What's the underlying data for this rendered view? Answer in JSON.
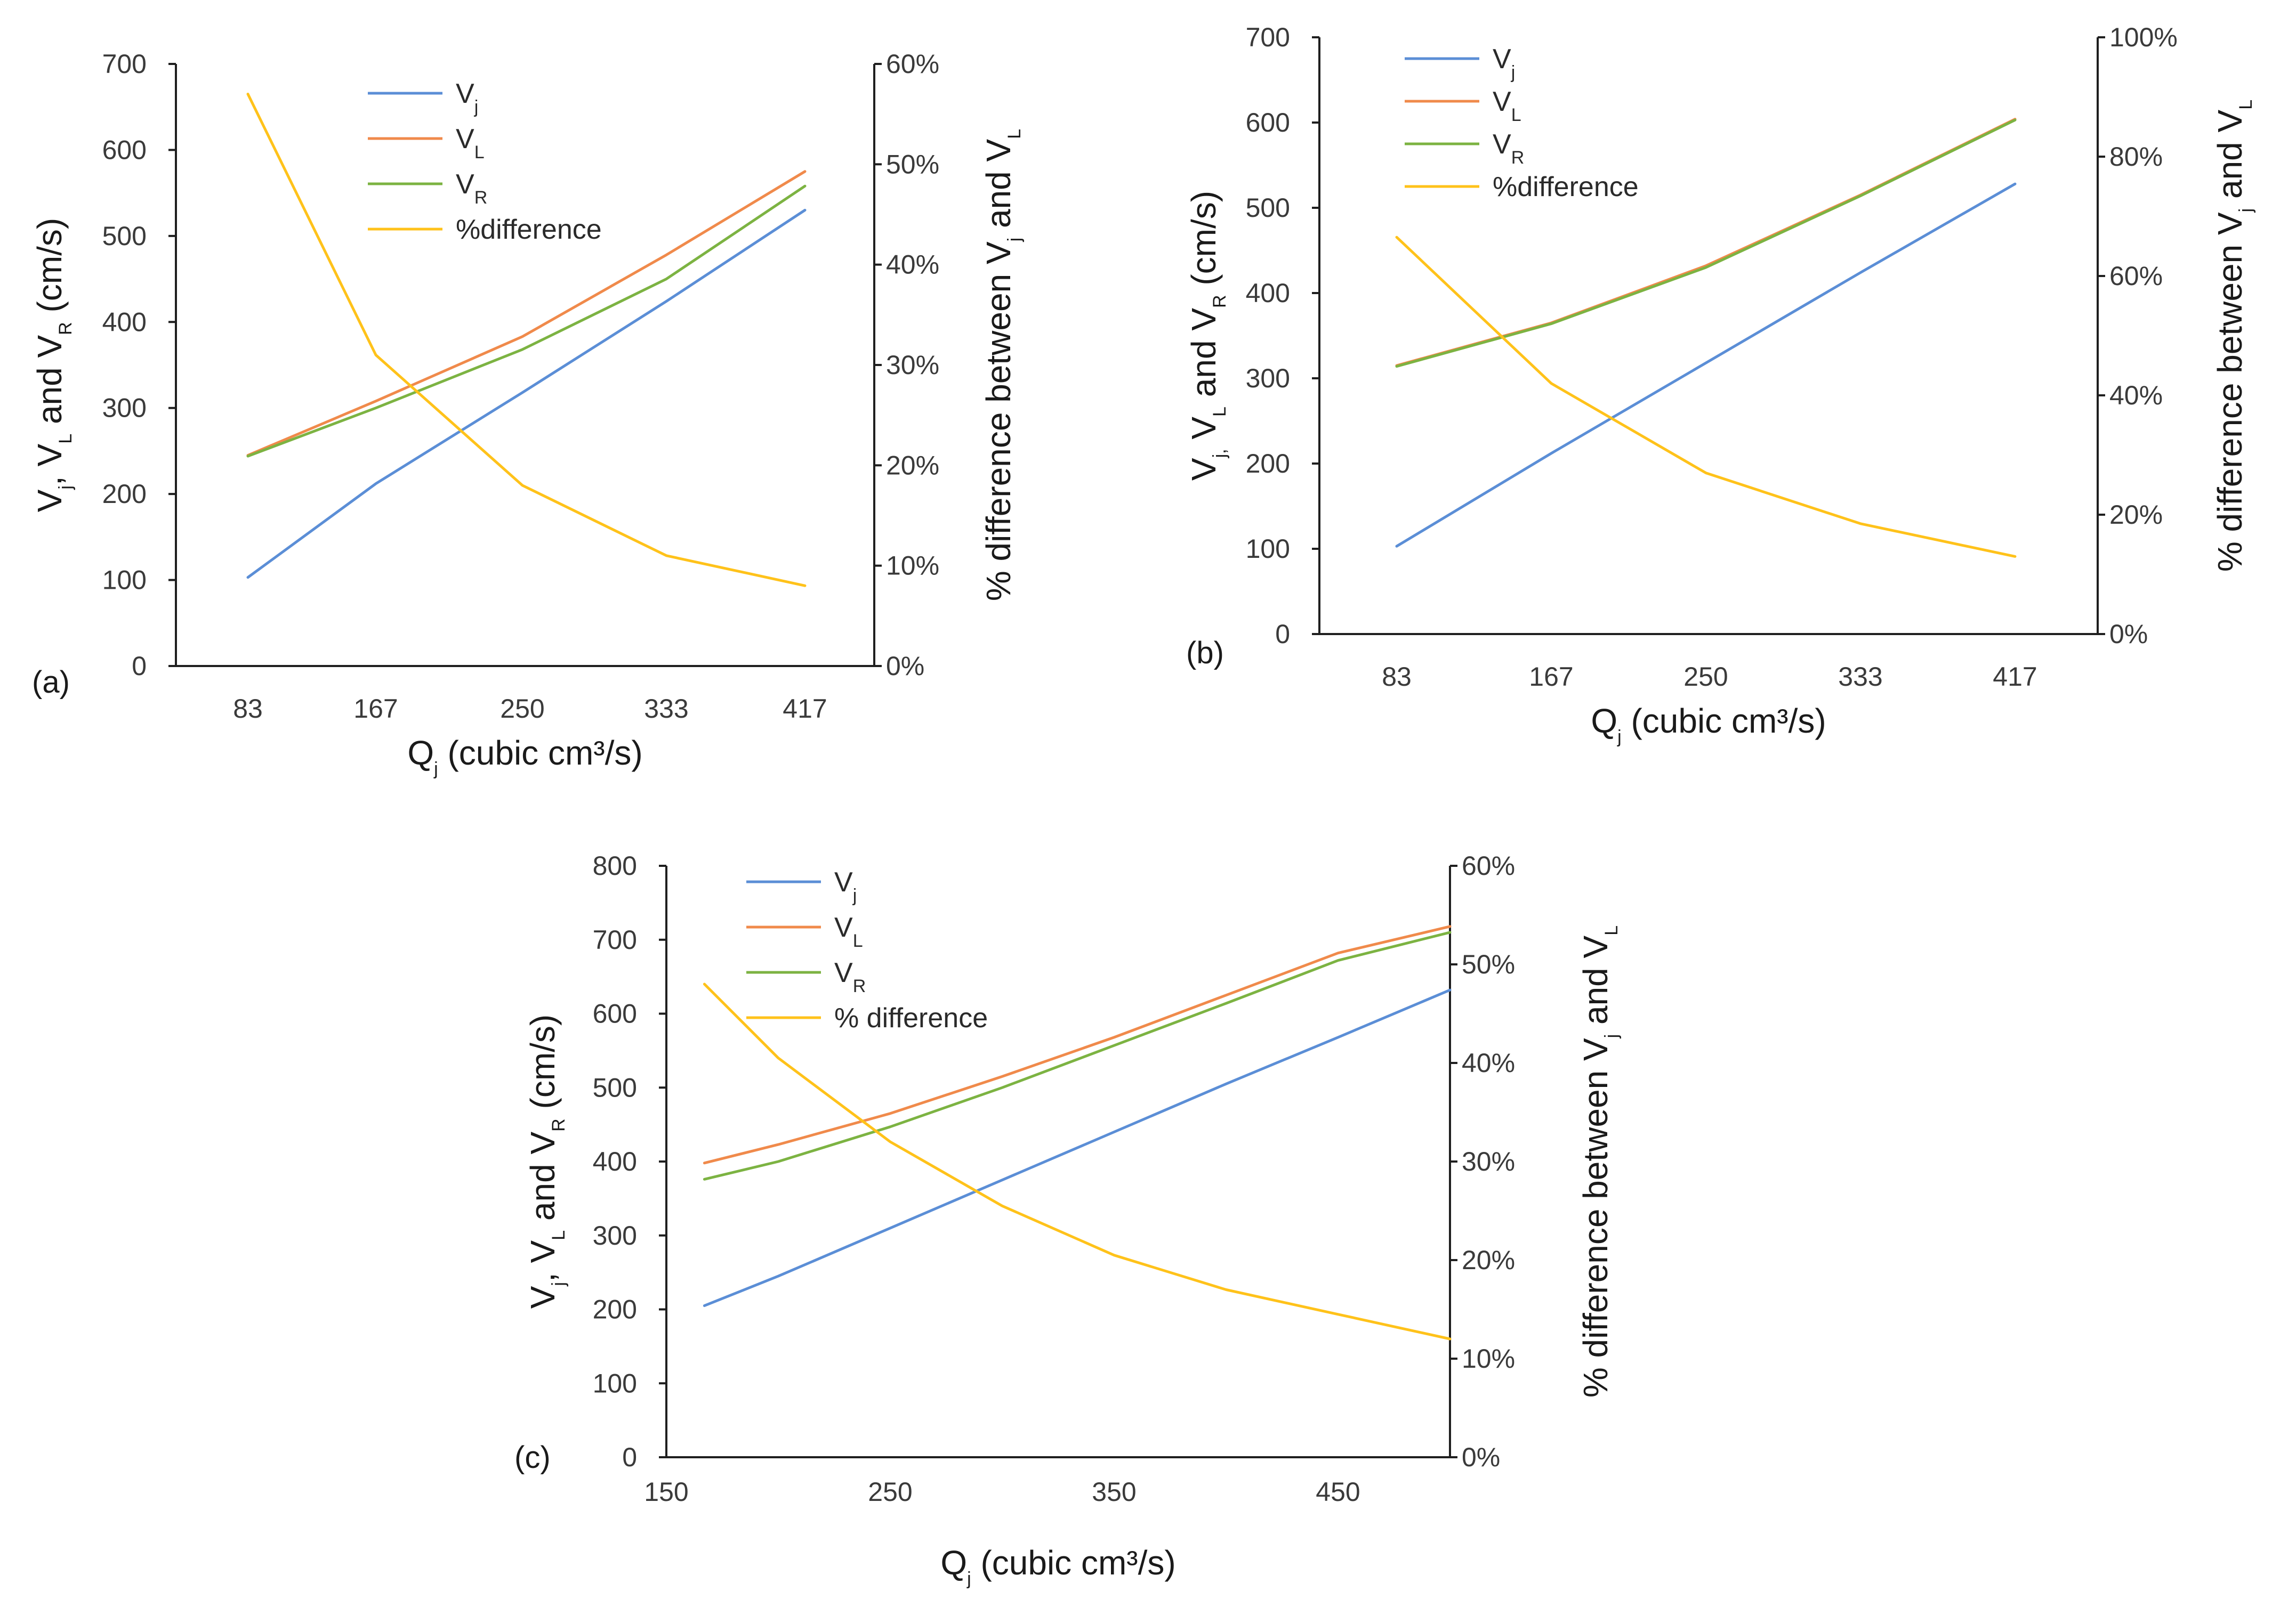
{
  "colors": {
    "vj": "#5B8ED6",
    "vl": "#F08A4B",
    "vr": "#7CB342",
    "diff": "#FFC21A",
    "axis": "#1f1f1f"
  },
  "chart_data": [
    {
      "type": "line",
      "panel_label": "(a)",
      "x": [
        83,
        167,
        250,
        333,
        417
      ],
      "x_tick_labels": [
        "83",
        "167",
        "250",
        "333",
        "417"
      ],
      "x_axis": {
        "base": "Q",
        "sub": "j",
        "rest": " (cubic cm³/s)"
      },
      "y_left": {
        "ticks": [
          0,
          100,
          200,
          300,
          400,
          500,
          600,
          700
        ],
        "tick_labels": [
          "0",
          "100",
          "200",
          "300",
          "400",
          "500",
          "600",
          "700"
        ],
        "ylim": [
          0,
          700
        ],
        "label_parts": [
          {
            "t": "V"
          },
          {
            "t": "j",
            "sub": true
          },
          {
            "t": ", V"
          },
          {
            "t": "L",
            "sub": true
          },
          {
            "t": " and V"
          },
          {
            "t": "R",
            "sub": true
          },
          {
            "t": " (cm/s)"
          }
        ]
      },
      "y_right": {
        "ticks": [
          0,
          0.1,
          0.2,
          0.3,
          0.4,
          0.5,
          0.6
        ],
        "tick_labels": [
          "0%",
          "10%",
          "20%",
          "30%",
          "40%",
          "50%",
          "60%"
        ],
        "ylim": [
          0,
          0.6
        ],
        "label_parts": [
          {
            "t": "% difference between V"
          },
          {
            "t": "j",
            "sub": true
          },
          {
            "t": " and V"
          },
          {
            "t": "L",
            "sub": true
          }
        ]
      },
      "series": [
        {
          "key": "vj",
          "name": "V",
          "sub": "j",
          "axis": "left",
          "values": [
            103,
            212,
            318,
            424,
            530
          ]
        },
        {
          "key": "vl",
          "name": "V",
          "sub": "L",
          "axis": "left",
          "values": [
            245,
            308,
            383,
            478,
            575
          ]
        },
        {
          "key": "vr",
          "name": "V",
          "sub": "R",
          "axis": "left",
          "values": [
            244,
            300,
            368,
            450,
            558
          ]
        },
        {
          "key": "diff",
          "name": "%difference",
          "sub": "",
          "axis": "right",
          "values": [
            0.57,
            0.31,
            0.18,
            0.11,
            0.08
          ]
        }
      ],
      "legend": "top-center"
    },
    {
      "type": "line",
      "panel_label": "(b)",
      "x": [
        83,
        167,
        250,
        333,
        417
      ],
      "x_tick_labels": [
        "83",
        "167",
        "250",
        "333",
        "417"
      ],
      "x_axis": {
        "base": "Q",
        "sub": "j",
        "rest": " (cubic cm³/s)"
      },
      "y_left": {
        "ticks": [
          0,
          100,
          200,
          300,
          400,
          500,
          600,
          700
        ],
        "tick_labels": [
          "0",
          "100",
          "200",
          "300",
          "400",
          "500",
          "600",
          "700"
        ],
        "ylim": [
          0,
          700
        ],
        "label_parts": [
          {
            "t": "V"
          },
          {
            "t": "j,",
            "sub": true
          },
          {
            "t": " V"
          },
          {
            "t": "L",
            "sub": true
          },
          {
            "t": " and V"
          },
          {
            "t": "R",
            "sub": true
          },
          {
            "t": " (cm/s)"
          }
        ]
      },
      "y_right": {
        "ticks": [
          0,
          0.2,
          0.4,
          0.6,
          0.8,
          1.0
        ],
        "tick_labels": [
          "0%",
          "20%",
          "40%",
          "60%",
          "80%",
          "100%"
        ],
        "ylim": [
          0,
          1.0
        ],
        "label_parts": [
          {
            "t": "% difference between V"
          },
          {
            "t": "j",
            "sub": true
          },
          {
            "t": " and V"
          },
          {
            "t": "L",
            "sub": true
          }
        ]
      },
      "series": [
        {
          "key": "vj",
          "name": "V",
          "sub": "j",
          "axis": "left",
          "values": [
            103,
            212,
            318,
            424,
            528
          ]
        },
        {
          "key": "vl",
          "name": "V",
          "sub": "L",
          "axis": "left",
          "values": [
            315,
            365,
            432,
            515,
            604
          ]
        },
        {
          "key": "vr",
          "name": "V",
          "sub": "R",
          "axis": "left",
          "values": [
            314,
            364,
            430,
            514,
            603
          ]
        },
        {
          "key": "diff",
          "name": "%difference",
          "sub": "",
          "axis": "right",
          "values": [
            0.665,
            0.42,
            0.27,
            0.185,
            0.13
          ]
        }
      ],
      "legend": "top-left"
    },
    {
      "type": "line",
      "panel_label": "(c)",
      "x": [
        167,
        200,
        250,
        300,
        350,
        400,
        450,
        500
      ],
      "xlim": [
        150,
        500
      ],
      "x_ticks": [
        150,
        250,
        350,
        450
      ],
      "x_tick_labels": [
        "150",
        "250",
        "350",
        "450"
      ],
      "x_axis": {
        "base": "Q",
        "sub": "j",
        "rest": " (cubic  cm³/s)"
      },
      "y_left": {
        "ticks": [
          0,
          100,
          200,
          300,
          400,
          500,
          600,
          700,
          800
        ],
        "tick_labels": [
          "0",
          "100",
          "200",
          "300",
          "400",
          "500",
          "600",
          "700",
          "800"
        ],
        "ylim": [
          0,
          800
        ],
        "label_parts": [
          {
            "t": "V"
          },
          {
            "t": "j",
            "sub": true
          },
          {
            "t": ", V"
          },
          {
            "t": "L",
            "sub": true
          },
          {
            "t": " and V"
          },
          {
            "t": "R",
            "sub": true
          },
          {
            "t": " (cm/s)"
          }
        ]
      },
      "y_right": {
        "ticks": [
          0,
          0.1,
          0.2,
          0.3,
          0.4,
          0.5,
          0.6
        ],
        "tick_labels": [
          "0%",
          "10%",
          "20%",
          "30%",
          "40%",
          "50%",
          "60%"
        ],
        "ylim": [
          0,
          0.6
        ],
        "label_parts": [
          {
            "t": "% difference between V"
          },
          {
            "t": "j",
            "sub": true
          },
          {
            "t": " and V"
          },
          {
            "t": "L",
            "sub": true
          }
        ]
      },
      "series": [
        {
          "key": "vj",
          "name": "V",
          "sub": "j",
          "axis": "left",
          "values": [
            205,
            245,
            310,
            375,
            440,
            505,
            568,
            632
          ]
        },
        {
          "key": "vl",
          "name": "V",
          "sub": "L",
          "axis": "left",
          "values": [
            398,
            423,
            465,
            515,
            568,
            625,
            682,
            718
          ]
        },
        {
          "key": "vr",
          "name": "V",
          "sub": "R",
          "axis": "left",
          "values": [
            376,
            400,
            447,
            500,
            557,
            614,
            672,
            710
          ]
        },
        {
          "key": "diff",
          "name": "% difference",
          "sub": "",
          "axis": "right",
          "values": [
            0.48,
            0.405,
            0.32,
            0.255,
            0.205,
            0.17,
            0.145,
            0.12
          ]
        }
      ],
      "legend": "top-left"
    }
  ]
}
